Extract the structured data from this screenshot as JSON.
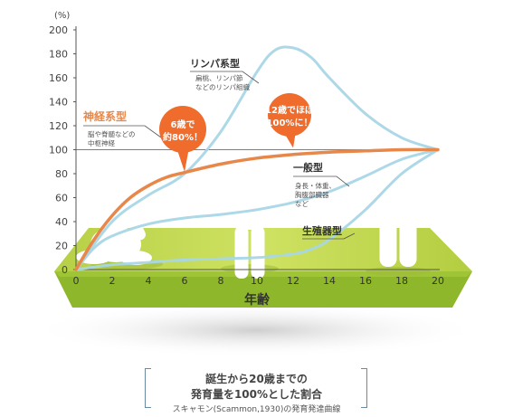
{
  "chart_data": {
    "type": "line",
    "x_range": [
      0,
      20
    ],
    "y_range": [
      0,
      200
    ],
    "y_unit": "(%)",
    "xlabel": "年齢",
    "x_ticks": [
      0,
      2,
      4,
      6,
      8,
      10,
      12,
      14,
      16,
      18,
      20
    ],
    "y_ticks": [
      0,
      20,
      40,
      60,
      80,
      100,
      120,
      140,
      160,
      180,
      200
    ],
    "reference_line": 100,
    "series": [
      {
        "name": "リンパ系型",
        "description": "扁桃、リンパ節 などのリンパ組織",
        "color": "#a9d6e6",
        "x": [
          0,
          2,
          4,
          6,
          8,
          10,
          11,
          12,
          13,
          14,
          16,
          18,
          20
        ],
        "y": [
          0,
          40,
          62,
          80,
          115,
          165,
          183,
          185,
          177,
          160,
          130,
          110,
          100
        ]
      },
      {
        "name": "神経系型",
        "description": "脳や脊髄などの 中枢神経",
        "color": "#e8874a",
        "x": [
          0,
          1,
          2,
          3,
          4,
          5,
          6,
          8,
          10,
          12,
          14,
          16,
          18,
          20
        ],
        "y": [
          0,
          25,
          45,
          60,
          70,
          77,
          81,
          88,
          93,
          96,
          98,
          99,
          100,
          100
        ]
      },
      {
        "name": "一般型",
        "description": "身長・体重、 胸腹部臓器 など",
        "color": "#a9d6e6",
        "x": [
          0,
          1,
          2,
          4,
          6,
          8,
          10,
          12,
          14,
          16,
          18,
          20
        ],
        "y": [
          0,
          18,
          28,
          38,
          43,
          46,
          50,
          56,
          65,
          78,
          92,
          100
        ]
      },
      {
        "name": "生殖器型",
        "description": "",
        "color": "#a9d6e6",
        "x": [
          0,
          2,
          4,
          6,
          8,
          10,
          12,
          13,
          14,
          16,
          18,
          20
        ],
        "y": [
          0,
          4,
          6,
          8,
          9,
          10,
          13,
          17,
          25,
          50,
          80,
          100
        ]
      }
    ],
    "annotations": [
      {
        "text": [
          "6歳で",
          "約80%！"
        ],
        "x": 6,
        "y": 80,
        "color": "#ef6c2d"
      },
      {
        "text": [
          "12歳でほぼ",
          "100%に！"
        ],
        "x": 12,
        "y": 100,
        "color": "#ef6c2d"
      }
    ],
    "figures": [
      "baby",
      "child",
      "adult"
    ]
  },
  "caption": {
    "line1": "誕生から20歳までの",
    "line2": "発育量を100%とした割合",
    "source": "スキャモン(Scammon,1930)の発育発達曲線"
  },
  "colors": {
    "floor_top": "#c7dd57",
    "floor_front": "#8fb72c",
    "curve_blue": "#a9d6e6",
    "curve_orange": "#e8874a",
    "bubble": "#ef6c2d",
    "axis": "#555555",
    "bracket": "#6a8aa2"
  }
}
